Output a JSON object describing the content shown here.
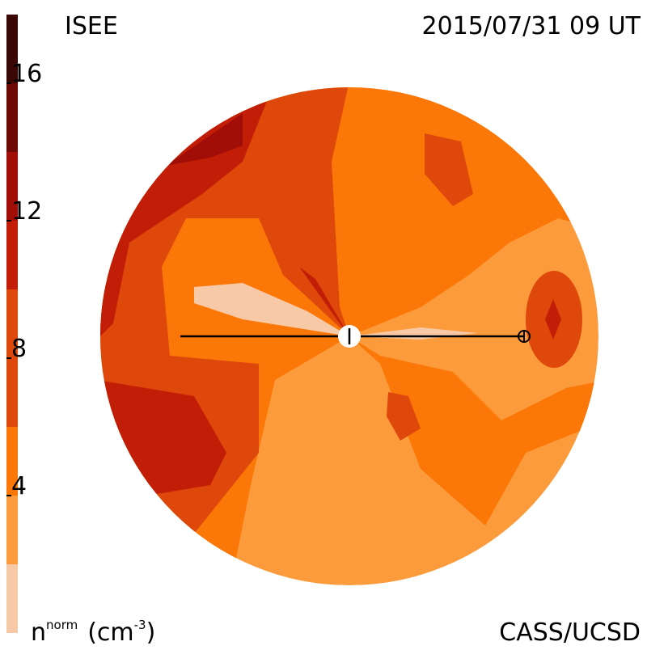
{
  "chart_data": {
    "type": "contour",
    "title": "ISEE",
    "date": "2015/07/31 09 UT",
    "credit": "CASS/UCSD",
    "colorbar_label": {
      "base": "n",
      "sup": "norm",
      "unit": "(cm",
      "unit_sup": "-3",
      "close": ")"
    },
    "levels": [
      0,
      2,
      4,
      6,
      10,
      12,
      14,
      16,
      18
    ],
    "colors": [
      "#f8c9a6",
      "#fc9b3b",
      "#fa7708",
      "#df480b",
      "#c11d07",
      "#a00e07",
      "#6e0906",
      "#3a0704"
    ],
    "ticks": [
      4,
      8,
      12,
      16
    ]
  }
}
